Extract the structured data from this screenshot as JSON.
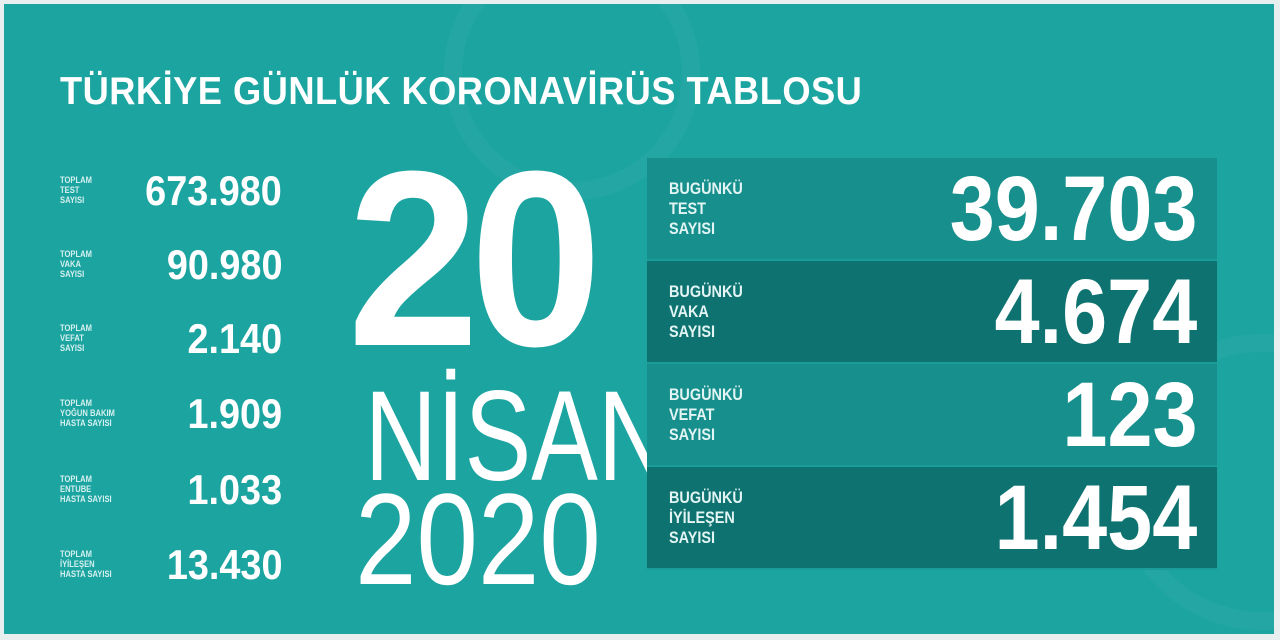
{
  "title": "TÜRKİYE GÜNLÜK KORONAVİRÜS TABLOSU",
  "colors": {
    "background": "#1ca4a1",
    "row_light": "#17908d",
    "row_dark": "#0e7370",
    "text": "#ffffff"
  },
  "totals": [
    {
      "label": [
        "TOPLAM",
        "TEST",
        "SAYISI"
      ],
      "value": "673.980"
    },
    {
      "label": [
        "TOPLAM",
        "VAKA",
        "SAYISI"
      ],
      "value": "90.980"
    },
    {
      "label": [
        "TOPLAM",
        "VEFAT",
        "SAYISI"
      ],
      "value": "2.140"
    },
    {
      "label": [
        "TOPLAM",
        "YOĞUN BAKIM",
        "HASTA SAYISI"
      ],
      "value": "1.909"
    },
    {
      "label": [
        "TOPLAM",
        "ENTUBE",
        "HASTA SAYISI"
      ],
      "value": "1.033"
    },
    {
      "label": [
        "TOPLAM",
        "İYİLEŞEN",
        "HASTA SAYISI"
      ],
      "value": "13.430"
    }
  ],
  "date": {
    "day": "20",
    "month": "NİSAN",
    "year": "2020"
  },
  "today": [
    {
      "label": [
        "BUGÜNKÜ",
        "TEST",
        "SAYISI"
      ],
      "value": "39.703"
    },
    {
      "label": [
        "BUGÜNKÜ",
        "VAKA",
        "SAYISI"
      ],
      "value": "4.674"
    },
    {
      "label": [
        "BUGÜNKÜ",
        "VEFAT",
        "SAYISI"
      ],
      "value": "123"
    },
    {
      "label": [
        "BUGÜNKÜ",
        "İYİLEŞEN",
        "SAYISI"
      ],
      "value": "1.454"
    }
  ]
}
